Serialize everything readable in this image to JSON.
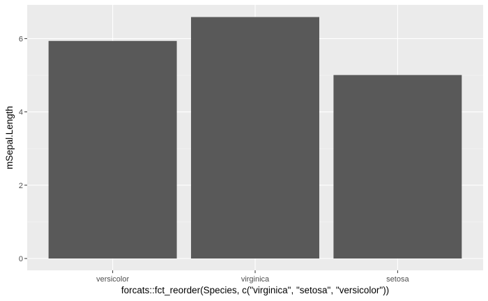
{
  "chart_data": {
    "type": "bar",
    "categories": [
      "versicolor",
      "virginica",
      "setosa"
    ],
    "values": [
      5.936,
      6.588,
      5.006
    ],
    "title": "",
    "xlabel": "forcats::fct_reorder(Species, c(\"virginica\", \"setosa\", \"versicolor\"))",
    "ylabel": "mSepal.Length",
    "ylim": [
      0,
      6.92
    ],
    "yticks": [
      0,
      2,
      4,
      6
    ],
    "grid": true,
    "colors": {
      "panel_background": "#ebebeb",
      "grid_major": "#ffffff",
      "grid_minor": "#f5f5f5",
      "bar_fill": "#595959",
      "tick_mark": "#333333",
      "tick_text": "#4d4d4d",
      "axis_title": "#000000"
    }
  }
}
